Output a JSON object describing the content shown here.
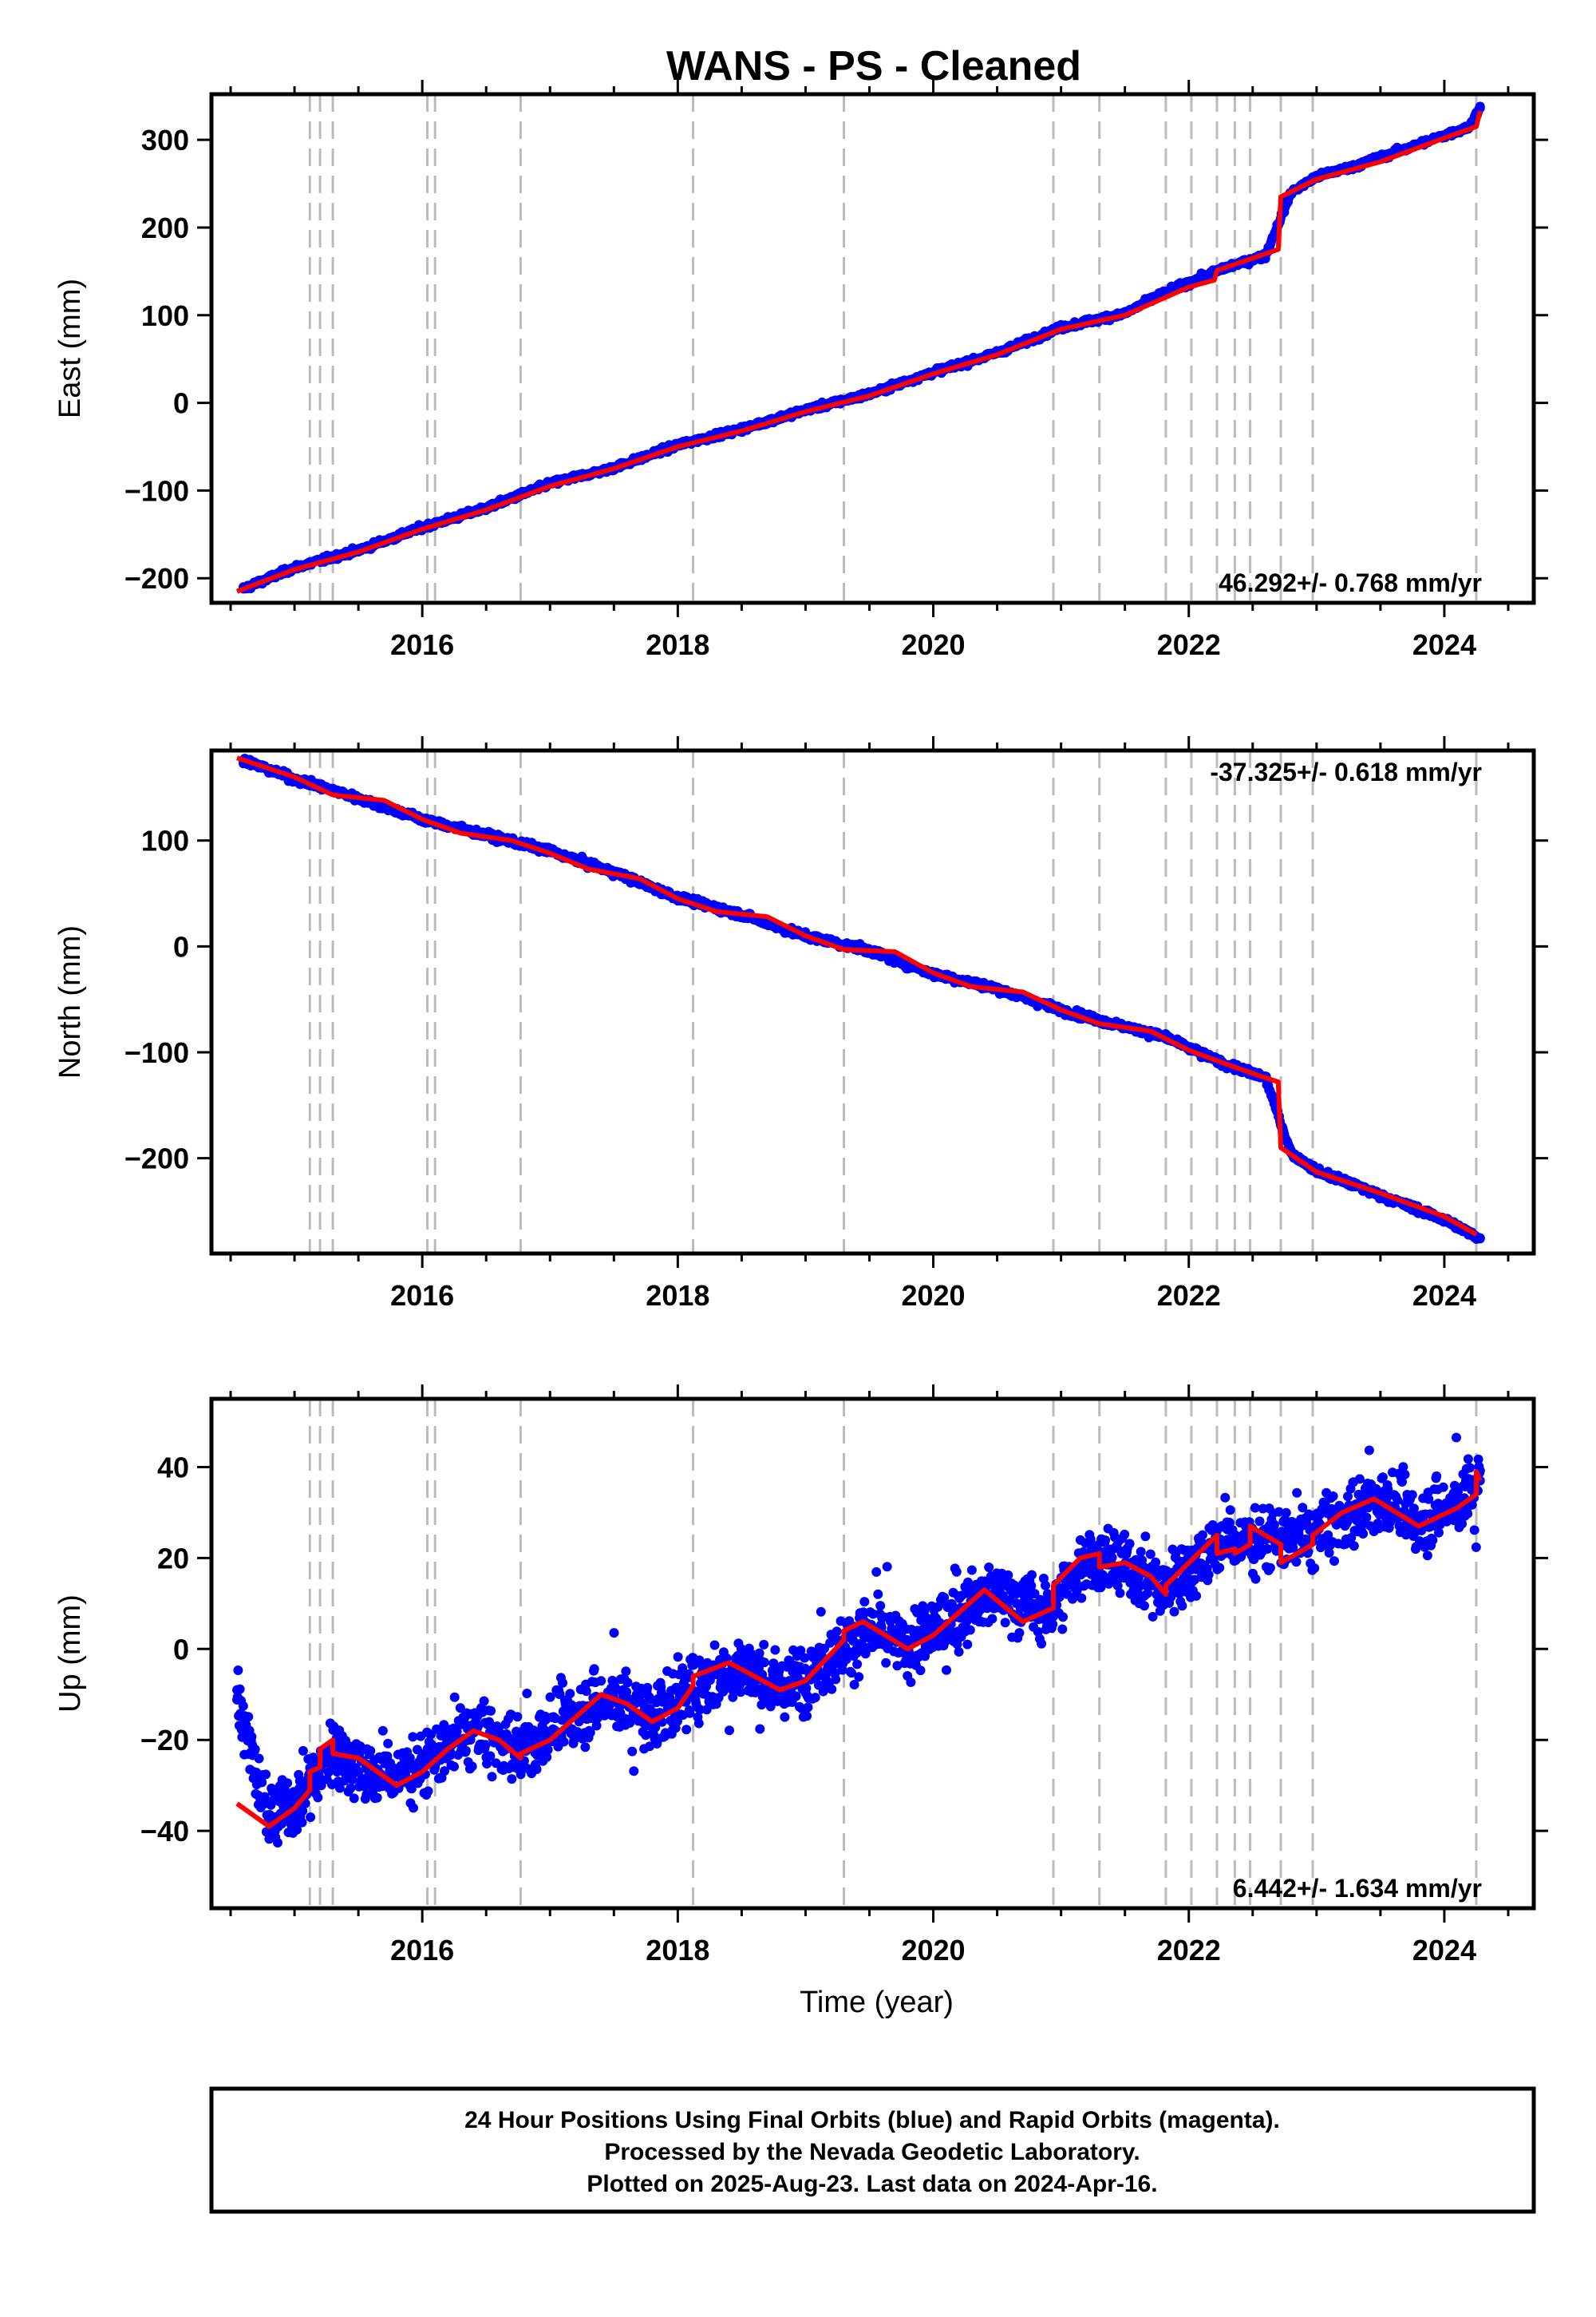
{
  "title": "WANS  - PS - Cleaned",
  "footer": [
    "24 Hour Positions Using Final Orbits (blue) and Rapid Orbits (magenta).",
    "Processed by the Nevada Geodetic Laboratory.",
    "Plotted on 2025-Aug-23. Last data on 2024-Apr-16."
  ],
  "colors": {
    "final_points": "#0000ff",
    "model_fit": "#ff0000",
    "event_lines": "#bbbbbb"
  },
  "chart_data": [
    {
      "type": "scatter",
      "panel": "east",
      "ylabel": "East (mm)",
      "xlabel": "",
      "xlim": [
        2014.35,
        2024.7
      ],
      "ylim": [
        -228,
        352
      ],
      "xticks": [
        2016,
        2018,
        2020,
        2022,
        2024
      ],
      "yticks": [
        -200,
        -100,
        0,
        100,
        200,
        300
      ],
      "rate_label": "46.292+/- 0.768 mm/yr",
      "rate_position": "bottom-right",
      "event_lines_x": [
        2015.12,
        2015.2,
        2015.3,
        2016.04,
        2016.1,
        2016.77,
        2018.12,
        2019.3,
        2020.94,
        2021.3,
        2021.82,
        2022.02,
        2022.22,
        2022.36,
        2022.48,
        2022.72,
        2022.97,
        2024.25
      ],
      "series": [
        {
          "label": "model_fit",
          "x": [
            2014.55,
            2015.0,
            2015.5,
            2016.0,
            2016.5,
            2017.0,
            2017.5,
            2018.0,
            2018.5,
            2019.0,
            2019.5,
            2020.0,
            2020.5,
            2021.0,
            2021.5,
            2022.0,
            2022.2,
            2022.22,
            2022.5,
            2022.7,
            2022.72,
            2023.0,
            2023.5,
            2024.0,
            2024.25,
            2024.28
          ],
          "y": [
            -215,
            -190,
            -170,
            -144,
            -122,
            -95,
            -75,
            -50,
            -32,
            -10,
            8,
            33,
            55,
            84,
            100,
            132,
            140,
            151,
            165,
            175,
            235,
            255,
            275,
            302,
            315,
            333
          ]
        },
        {
          "label": "final_orbits",
          "x": [
            2014.6,
            2015.0,
            2015.5,
            2016.0,
            2016.5,
            2017.0,
            2017.5,
            2018.0,
            2018.5,
            2019.0,
            2019.5,
            2020.0,
            2020.5,
            2021.0,
            2021.5,
            2021.8,
            2022.3,
            2022.6,
            2022.8,
            2023.0,
            2023.3,
            2023.6,
            2023.9,
            2024.2,
            2024.28
          ],
          "y": [
            -212,
            -188,
            -168,
            -142,
            -120,
            -92,
            -74,
            -48,
            -30,
            -8,
            10,
            35,
            57,
            86,
            102,
            125,
            155,
            168,
            240,
            258,
            270,
            285,
            300,
            315,
            338
          ]
        }
      ]
    },
    {
      "type": "scatter",
      "panel": "north",
      "ylabel": "North (mm)",
      "xlabel": "",
      "xlim": [
        2014.35,
        2024.7
      ],
      "ylim": [
        -290,
        185
      ],
      "xticks": [
        2016,
        2018,
        2020,
        2022,
        2024
      ],
      "yticks": [
        -200,
        -100,
        0,
        100
      ],
      "rate_label": "-37.325+/- 0.618 mm/yr",
      "rate_position": "top-right",
      "event_lines_x": [
        2015.12,
        2015.2,
        2015.3,
        2016.04,
        2016.1,
        2016.77,
        2018.12,
        2019.3,
        2020.94,
        2021.3,
        2021.82,
        2022.02,
        2022.22,
        2022.36,
        2022.48,
        2022.72,
        2022.97,
        2024.25
      ],
      "series": [
        {
          "label": "model_fit",
          "x": [
            2014.55,
            2015.0,
            2015.3,
            2015.7,
            2016.0,
            2016.3,
            2016.7,
            2017.0,
            2017.3,
            2017.7,
            2018.0,
            2018.3,
            2018.7,
            2019.0,
            2019.3,
            2019.7,
            2020.0,
            2020.3,
            2020.7,
            2021.0,
            2021.3,
            2021.7,
            2022.0,
            2022.22,
            2022.5,
            2022.7,
            2022.72,
            2023.0,
            2023.5,
            2024.0,
            2024.25
          ],
          "y": [
            178,
            160,
            143,
            138,
            120,
            107,
            100,
            88,
            73,
            64,
            45,
            33,
            28,
            10,
            -3,
            -5,
            -25,
            -38,
            -43,
            -60,
            -73,
            -80,
            -98,
            -108,
            -120,
            -128,
            -190,
            -213,
            -233,
            -255,
            -272
          ]
        },
        {
          "label": "final_orbits",
          "x": [
            2014.6,
            2015.0,
            2015.5,
            2016.0,
            2016.5,
            2017.0,
            2017.5,
            2018.0,
            2018.5,
            2019.0,
            2019.5,
            2020.0,
            2020.5,
            2021.0,
            2021.5,
            2021.8,
            2022.3,
            2022.6,
            2022.8,
            2023.0,
            2023.5,
            2024.0,
            2024.28
          ],
          "y": [
            176,
            158,
            140,
            120,
            105,
            90,
            70,
            46,
            30,
            10,
            -4,
            -26,
            -40,
            -60,
            -76,
            -85,
            -112,
            -124,
            -195,
            -212,
            -235,
            -258,
            -276
          ]
        }
      ]
    },
    {
      "type": "scatter",
      "panel": "up",
      "ylabel": "Up (mm)",
      "xlabel": "Time (year)",
      "xlim": [
        2014.35,
        2024.7
      ],
      "ylim": [
        -57,
        55
      ],
      "xticks": [
        2016,
        2018,
        2020,
        2022,
        2024
      ],
      "yticks": [
        -40,
        -20,
        0,
        20,
        40
      ],
      "rate_label": "6.442+/- 1.634 mm/yr",
      "rate_position": "bottom-right",
      "event_lines_x": [
        2015.12,
        2015.2,
        2015.3,
        2016.04,
        2016.1,
        2016.77,
        2018.12,
        2019.3,
        2020.94,
        2021.3,
        2021.82,
        2022.02,
        2022.22,
        2022.36,
        2022.48,
        2022.72,
        2022.97,
        2024.25
      ],
      "series": [
        {
          "label": "model_fit",
          "x": [
            2014.55,
            2014.7,
            2014.8,
            2015.0,
            2015.12,
            2015.12,
            2015.2,
            2015.2,
            2015.3,
            2015.3,
            2015.5,
            2015.8,
            2016.0,
            2016.2,
            2016.4,
            2016.6,
            2016.77,
            2016.77,
            2017.0,
            2017.4,
            2017.6,
            2017.8,
            2018.0,
            2018.12,
            2018.12,
            2018.4,
            2018.8,
            2019.0,
            2019.3,
            2019.3,
            2019.45,
            2019.8,
            2020.0,
            2020.4,
            2020.7,
            2020.94,
            2020.94,
            2021.15,
            2021.3,
            2021.3,
            2021.5,
            2021.7,
            2021.82,
            2021.82,
            2022.22,
            2022.22,
            2022.36,
            2022.36,
            2022.48,
            2022.48,
            2022.6,
            2022.72,
            2022.72,
            2022.85,
            2022.97,
            2022.97,
            2023.2,
            2023.45,
            2023.8,
            2024.1,
            2024.25,
            2024.25,
            2024.28
          ],
          "y": [
            -34,
            -37,
            -39,
            -35,
            -31,
            -27,
            -26,
            -22,
            -20,
            -23,
            -24,
            -30,
            -27,
            -22,
            -18,
            -20,
            -24,
            -23,
            -20,
            -10,
            -12,
            -16,
            -13,
            -8,
            -6,
            -3,
            -9,
            -7,
            2,
            4,
            6,
            0,
            3,
            13,
            6,
            9,
            14,
            20,
            21,
            18,
            19,
            16,
            12,
            14,
            25,
            21,
            22,
            21,
            23,
            27,
            25,
            23,
            19,
            21,
            23,
            25,
            30,
            33,
            27,
            31,
            34,
            39,
            37
          ]
        },
        {
          "label": "final_orbits",
          "x": [
            2014.55,
            2014.8,
            2015.0,
            2015.3,
            2015.6,
            2016.0,
            2016.4,
            2016.8,
            2017.2,
            2017.5,
            2017.8,
            2018.2,
            2018.5,
            2018.8,
            2019.2,
            2019.5,
            2019.8,
            2020.2,
            2020.5,
            2020.9,
            2021.2,
            2021.5,
            2021.8,
            2022.3,
            2022.6,
            2022.9,
            2023.2,
            2023.5,
            2023.8,
            2024.1,
            2024.28
          ],
          "y": [
            -9,
            -38,
            -34,
            -22,
            -28,
            -26,
            -18,
            -22,
            -14,
            -11,
            -15,
            -7,
            -4,
            -9,
            -2,
            4,
            0,
            8,
            12,
            8,
            20,
            18,
            14,
            24,
            24,
            24,
            29,
            33,
            28,
            32,
            37
          ]
        }
      ]
    }
  ]
}
